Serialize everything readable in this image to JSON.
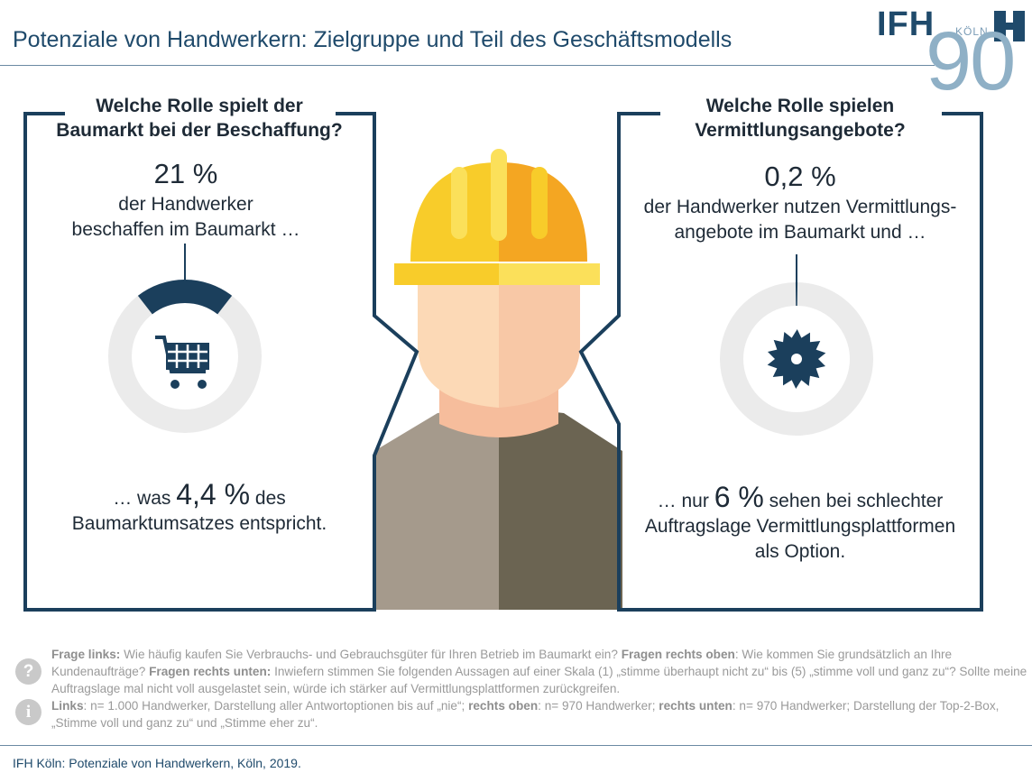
{
  "header": {
    "title": "Potenziale von Handwerkern: Zielgruppe und Teil des Geschäftsmodells",
    "logo_text": "IFH",
    "logo_city": "KÖLN",
    "logo_number": "90"
  },
  "left_panel": {
    "question_line1": "Welche Rolle spielt der",
    "question_line2": "Baumarkt bei der Beschaffung?",
    "stat": "21 %",
    "stat_text_line1": "der Handwerker",
    "stat_text_line2": "beschaffen im Baumarkt …",
    "share_fraction": 0.21,
    "icon": "shopping-cart-icon",
    "bottom_prefix": "… was ",
    "bottom_value": "4,4 %",
    "bottom_suffix": " des",
    "bottom_line2": "Baumarktumsatzes entspricht."
  },
  "right_panel": {
    "question_line1": "Welche Rolle spielen",
    "question_line2": "Vermittlungsangebote?",
    "stat": "0,2 %",
    "stat_text_line1": "der Handwerker nutzen Vermittlungs-",
    "stat_text_line2": "angebote im Baumarkt und …",
    "share_fraction": 0.002,
    "icon": "saw-blade-icon",
    "bottom_prefix": "… nur ",
    "bottom_value": "6 %",
    "bottom_suffix": " sehen bei schlechter",
    "bottom_line2": "Auftragslage Vermittlungsplattformen",
    "bottom_line3": "als Option."
  },
  "footer": {
    "q_label": "Frage links:",
    "q_text": " Wie häufig kaufen Sie Verbrauchs- und Gebrauchsgüter für Ihren Betrieb im Baumarkt ein?  ",
    "q2_label": "Fragen rechts oben",
    "q2_text": ": Wie kommen Sie grundsätzlich an Ihre Kundenaufträge? ",
    "q3_label": "Fragen rechts unten:",
    "q3_text": " Inwiefern stimmen Sie folgenden Aussagen auf einer Skala (1) „stimme überhaupt nicht zu“ bis (5) „stimme voll und ganz zu“? Sollte meine Auftragslage mal nicht voll ausgelastet sein, würde ich stärker auf Vermittlungsplattformen zurückgreifen.",
    "n1_label": "Links",
    "n1_text": ": n= 1.000 Handwerker, Darstellung aller Antwortoptionen bis auf „nie“; ",
    "n2_label": "rechts oben",
    "n2_text": ": n= 970 Handwerker; ",
    "n3_label": "rechts unten",
    "n3_text": ": n= 970 Handwerker; Darstellung der Top-2-Box, „Stimme voll und ganz zu“ und „Stimme eher zu“.",
    "question_icon": "?",
    "info_icon": "i",
    "source": "IFH Köln: Potenziale von Handwerkern, Köln, 2019."
  },
  "colors": {
    "navy": "#1b3f5c",
    "ring_gray": "#ebebeb",
    "helmet_yellow": "#f8cc2a",
    "helmet_orange": "#f4a622",
    "skin_light": "#fcd9b6",
    "skin_shade": "#f6bd9c",
    "shirt_left": "#a59a8c",
    "shirt_right": "#6b6452"
  }
}
